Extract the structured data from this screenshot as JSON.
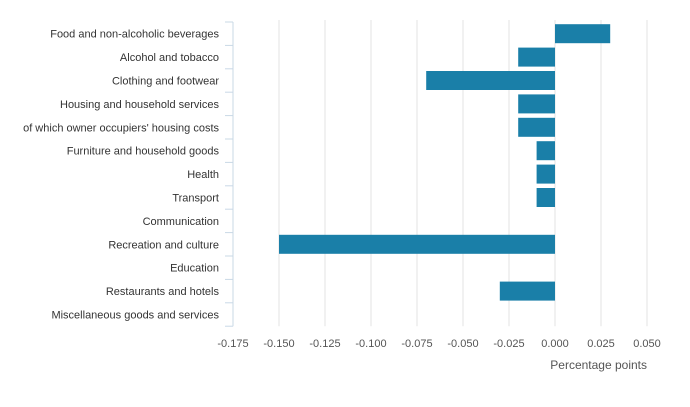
{
  "chart_data": {
    "type": "bar",
    "orientation": "horizontal",
    "categories": [
      "Food and non-alcoholic beverages",
      "Alcohol and tobacco",
      "Clothing and footwear",
      "Housing and household services",
      "of which owner occupiers' housing costs",
      "Furniture and household goods",
      "Health",
      "Transport",
      "Communication",
      "Recreation and culture",
      "Education",
      "Restaurants and hotels",
      "Miscellaneous goods and services"
    ],
    "values": [
      0.03,
      -0.02,
      -0.07,
      -0.02,
      -0.02,
      -0.01,
      -0.01,
      -0.01,
      0,
      -0.15,
      0,
      -0.03,
      0
    ],
    "xticks": [
      "-0.175",
      "-0.150",
      "-0.125",
      "-0.100",
      "-0.075",
      "-0.050",
      "-0.025",
      "0.000",
      "0.025",
      "0.050"
    ],
    "xlim": [
      -0.175,
      0.05
    ],
    "xlabel": "Percentage points",
    "grid": true,
    "bar_color": "#1a7fa8",
    "grid_color": "#e3e3e3"
  }
}
